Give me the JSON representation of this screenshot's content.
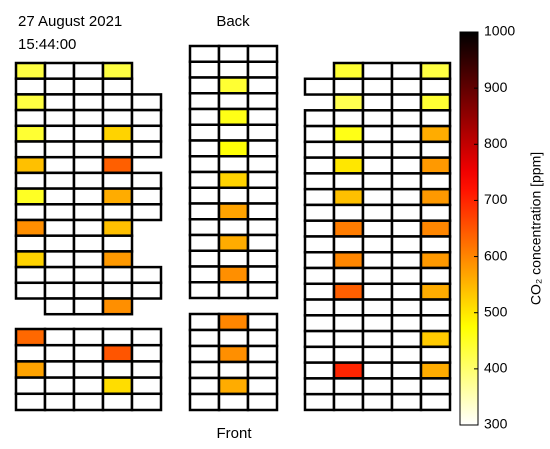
{
  "date": "27 August 2021",
  "time": "15:44:00",
  "back_label": "Back",
  "front_label": "Front",
  "seating": {
    "sections": [
      {
        "rows": [
          {
            "start": 0,
            "cells": [
              430,
              null,
              null,
              430
            ]
          },
          {
            "start": 0,
            "cells": [
              null,
              null,
              null,
              null
            ]
          },
          {
            "start": 0,
            "cells": [
              430,
              null,
              null,
              null,
              null
            ]
          },
          {
            "start": 0,
            "cells": [
              null,
              null,
              null,
              null,
              null
            ]
          },
          {
            "start": 0,
            "cells": [
              440,
              null,
              null,
              520,
              null
            ]
          },
          {
            "start": 0,
            "cells": [
              null,
              null,
              null,
              null,
              null
            ]
          },
          {
            "start": 0,
            "cells": [
              540,
              null,
              null,
              640
            ]
          },
          {
            "start": 0,
            "cells": [
              null,
              null,
              null,
              null,
              null
            ]
          },
          {
            "start": 0,
            "cells": [
              450,
              null,
              null,
              560,
              null
            ]
          },
          {
            "start": 0,
            "cells": [
              null,
              null,
              null,
              null,
              null
            ]
          },
          {
            "start": 0,
            "cells": [
              590,
              null,
              null,
              540
            ]
          },
          {
            "start": 0,
            "cells": [
              null,
              null,
              null,
              null
            ]
          },
          {
            "start": 0,
            "cells": [
              520,
              null,
              null,
              580
            ]
          },
          {
            "start": 0,
            "cells": [
              null,
              null,
              null,
              null,
              null
            ]
          },
          {
            "start": 0,
            "cells": [
              null,
              null,
              null,
              null,
              null
            ]
          },
          {
            "start": 1,
            "cells": [
              null,
              null,
              590
            ]
          }
        ]
      },
      {
        "rows": [
          {
            "start": 0,
            "cells": [
              630,
              null,
              null,
              null,
              null
            ]
          },
          {
            "start": 0,
            "cells": [
              null,
              null,
              null,
              650,
              null
            ]
          },
          {
            "start": 0,
            "cells": [
              570,
              null,
              null,
              null,
              null
            ]
          },
          {
            "start": 0,
            "cells": [
              null,
              null,
              null,
              510,
              null
            ]
          },
          {
            "start": 0,
            "cells": [
              null,
              null,
              null,
              null,
              null
            ]
          }
        ]
      },
      {
        "rows": [
          {
            "start": 0,
            "cells": [
              null,
              null,
              null
            ]
          },
          {
            "start": 0,
            "cells": [
              null,
              null,
              null
            ]
          },
          {
            "start": 0,
            "cells": [
              null,
              440,
              null
            ]
          },
          {
            "start": 0,
            "cells": [
              null,
              null,
              null
            ]
          },
          {
            "start": 0,
            "cells": [
              null,
              460,
              null
            ]
          },
          {
            "start": 0,
            "cells": [
              null,
              null,
              null
            ]
          },
          {
            "start": 0,
            "cells": [
              null,
              470,
              null
            ]
          },
          {
            "start": 0,
            "cells": [
              null,
              null,
              null
            ]
          },
          {
            "start": 0,
            "cells": [
              null,
              520,
              null
            ]
          },
          {
            "start": 0,
            "cells": [
              null,
              null,
              null
            ]
          },
          {
            "start": 0,
            "cells": [
              null,
              570,
              null
            ]
          },
          {
            "start": 0,
            "cells": [
              null,
              null,
              null
            ]
          },
          {
            "start": 0,
            "cells": [
              null,
              560,
              null
            ]
          },
          {
            "start": 0,
            "cells": [
              null,
              null,
              null
            ]
          },
          {
            "start": 0,
            "cells": [
              null,
              590,
              null
            ]
          },
          {
            "start": 0,
            "cells": [
              null,
              null,
              null
            ]
          }
        ]
      },
      {
        "rows": [
          {
            "start": 0,
            "cells": [
              null,
              600,
              null
            ]
          },
          {
            "start": 0,
            "cells": [
              null,
              null,
              null
            ]
          },
          {
            "start": 0,
            "cells": [
              null,
              590,
              null
            ]
          },
          {
            "start": 0,
            "cells": [
              null,
              null,
              null
            ]
          },
          {
            "start": 0,
            "cells": [
              null,
              560,
              null
            ]
          },
          {
            "start": 0,
            "cells": [
              null,
              null,
              null
            ]
          }
        ]
      },
      {
        "rows": [
          {
            "start": 1,
            "cells": [
              440,
              null,
              null,
              430
            ]
          },
          {
            "start": 0,
            "cells": [
              null,
              null,
              null,
              null,
              null
            ]
          },
          {
            "start": 1,
            "cells": [
              420,
              null,
              null,
              440
            ]
          },
          {
            "start": 0,
            "cells": [
              null,
              null,
              null,
              null,
              null
            ]
          },
          {
            "start": 0,
            "cells": [
              null,
              460,
              null,
              null,
              560
            ]
          },
          {
            "start": 0,
            "cells": [
              null,
              null,
              null,
              null,
              null
            ]
          },
          {
            "start": 0,
            "cells": [
              null,
              500,
              null,
              null,
              580
            ]
          },
          {
            "start": 0,
            "cells": [
              null,
              null,
              null,
              null,
              null
            ]
          },
          {
            "start": 0,
            "cells": [
              null,
              540,
              null,
              null,
              580
            ]
          },
          {
            "start": 0,
            "cells": [
              null,
              null,
              null,
              null,
              null
            ]
          },
          {
            "start": 0,
            "cells": [
              null,
              610,
              null,
              null,
              600
            ]
          },
          {
            "start": 0,
            "cells": [
              null,
              null,
              null,
              null,
              null
            ]
          },
          {
            "start": 0,
            "cells": [
              null,
              600,
              null,
              null,
              580
            ]
          },
          {
            "start": 0,
            "cells": [
              null,
              null,
              null,
              null,
              null
            ]
          },
          {
            "start": 0,
            "cells": [
              null,
              640,
              null,
              null,
              560
            ]
          },
          {
            "start": 0,
            "cells": [
              null,
              null,
              null,
              null,
              null
            ]
          },
          {
            "start": 0,
            "cells": [
              null,
              null,
              null,
              null,
              null
            ]
          },
          {
            "start": 0,
            "cells": [
              null,
              null,
              null,
              null,
              530
            ]
          },
          {
            "start": 0,
            "cells": [
              null,
              null,
              null,
              null,
              null
            ]
          },
          {
            "start": 0,
            "cells": [
              null,
              700,
              null,
              null,
              560
            ]
          },
          {
            "start": 0,
            "cells": [
              null,
              null,
              null,
              null,
              null
            ]
          },
          {
            "start": 0,
            "cells": [
              null,
              null,
              null,
              null,
              null
            ]
          }
        ]
      }
    ]
  },
  "colorbar": {
    "label": "CO₂ concentration [ppm]",
    "lim": [
      300,
      1000
    ],
    "ticks": [
      300,
      400,
      500,
      600,
      700,
      800,
      900,
      1000
    ]
  }
}
